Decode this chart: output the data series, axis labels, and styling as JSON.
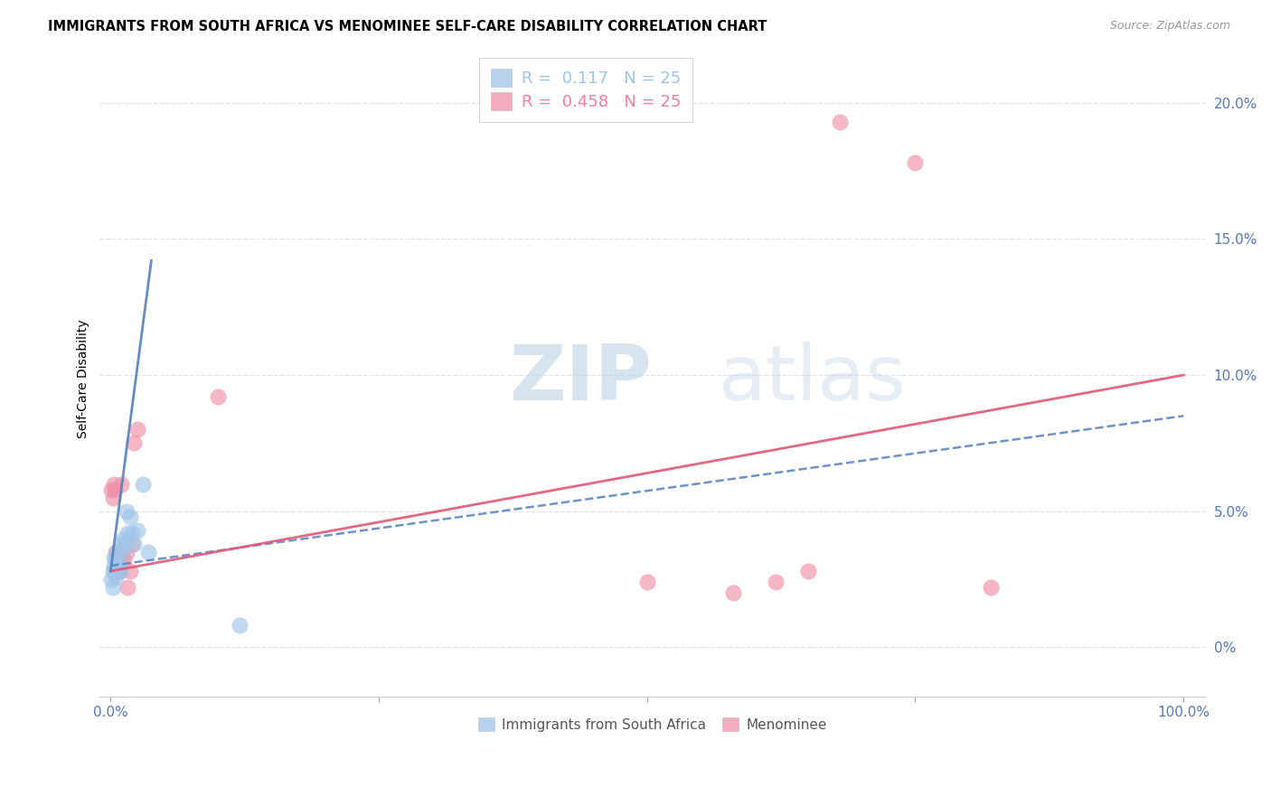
{
  "title": "IMMIGRANTS FROM SOUTH AFRICA VS MENOMINEE SELF-CARE DISABILITY CORRELATION CHART",
  "source": "Source: ZipAtlas.com",
  "ylabel": "Self-Care Disability",
  "xlim": [
    -0.01,
    1.02
  ],
  "ylim": [
    -0.018,
    0.215
  ],
  "yticks": [
    0.0,
    0.05,
    0.1,
    0.15,
    0.2
  ],
  "ytick_labels": [
    "0%",
    "5.0%",
    "10.0%",
    "15.0%",
    "20.0%"
  ],
  "xticks": [
    0.0,
    0.25,
    0.5,
    0.75,
    1.0
  ],
  "xtick_labels": [
    "0.0%",
    "",
    "",
    "",
    "100.0%"
  ],
  "legend_R_entries": [
    {
      "R": "0.117",
      "N": "25",
      "color": "#a0c4e8"
    },
    {
      "R": "0.458",
      "N": "25",
      "color": "#f080a0"
    }
  ],
  "legend_bottom": [
    {
      "label": "Immigrants from South Africa",
      "color": "#a0c4e8"
    },
    {
      "label": "Menominee",
      "color": "#f08090"
    }
  ],
  "blue_color": "#a0c4e8",
  "pink_color": "#f090a8",
  "blue_line_color": "#5580c0",
  "pink_line_color": "#e05878",
  "axis_tick_color": "#5577bb",
  "grid_color": "#e0e4e8",
  "blue_scatter_x": [
    0.001,
    0.002,
    0.002,
    0.003,
    0.003,
    0.004,
    0.005,
    0.005,
    0.006,
    0.007,
    0.008,
    0.009,
    0.01,
    0.011,
    0.012,
    0.013,
    0.015,
    0.016,
    0.018,
    0.02,
    0.022,
    0.025,
    0.03,
    0.035,
    0.12
  ],
  "blue_scatter_y": [
    0.025,
    0.022,
    0.028,
    0.03,
    0.033,
    0.028,
    0.032,
    0.026,
    0.035,
    0.03,
    0.03,
    0.028,
    0.038,
    0.035,
    0.04,
    0.038,
    0.05,
    0.042,
    0.048,
    0.042,
    0.038,
    0.043,
    0.06,
    0.035,
    0.008
  ],
  "pink_scatter_x": [
    0.001,
    0.002,
    0.003,
    0.004,
    0.005,
    0.006,
    0.007,
    0.008,
    0.009,
    0.01,
    0.012,
    0.015,
    0.016,
    0.018,
    0.02,
    0.022,
    0.025,
    0.1,
    0.5,
    0.58,
    0.62,
    0.65,
    0.68,
    0.75,
    0.82
  ],
  "pink_scatter_y": [
    0.058,
    0.055,
    0.06,
    0.058,
    0.035,
    0.03,
    0.033,
    0.028,
    0.032,
    0.06,
    0.032,
    0.035,
    0.022,
    0.028,
    0.038,
    0.075,
    0.08,
    0.092,
    0.024,
    0.02,
    0.024,
    0.028,
    0.193,
    0.178,
    0.022
  ]
}
